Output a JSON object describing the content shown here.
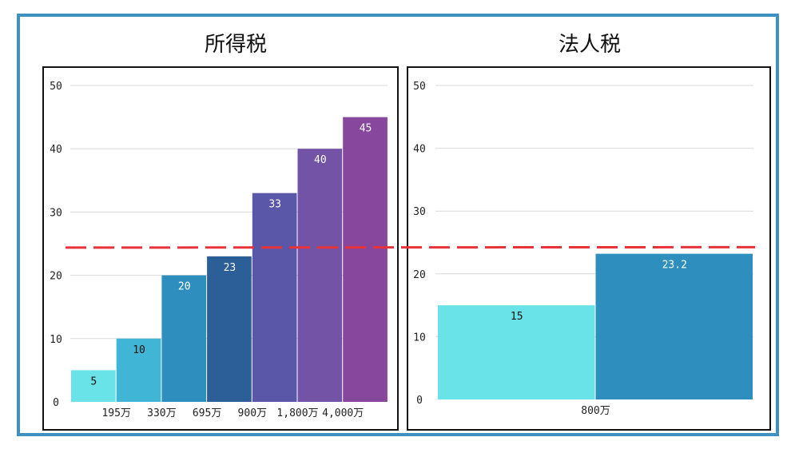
{
  "colors": {
    "frame": "#3f91c2",
    "reference_line": "#e8323a",
    "gridline": "#d9d9d9"
  },
  "reference_line_value": 24,
  "chart_data": [
    {
      "type": "bar",
      "title": "所得税",
      "ylim": [
        0,
        50
      ],
      "yticks": [
        0,
        10,
        20,
        30,
        40,
        50
      ],
      "grid": true,
      "boundary_labels": [
        "195万",
        "330万",
        "695万",
        "900万",
        "1,800万",
        "4,000万"
      ],
      "values": [
        5,
        10,
        20,
        23,
        33,
        40,
        45
      ],
      "data_labels": [
        "5",
        "10",
        "20",
        "23",
        "33",
        "40",
        "45"
      ],
      "colors": [
        "#6ae3e8",
        "#41b5d6",
        "#2e8fbe",
        "#2c5e97",
        "#5b57a8",
        "#7353a6",
        "#86479c"
      ],
      "label_colors": [
        "#111111",
        "#111111",
        "#ffffff",
        "#ffffff",
        "#ffffff",
        "#ffffff",
        "#ffffff"
      ]
    },
    {
      "type": "bar",
      "title": "法人税",
      "ylim": [
        0,
        50
      ],
      "yticks": [
        0,
        10,
        20,
        30,
        40,
        50
      ],
      "grid": true,
      "boundary_labels": [
        "800万"
      ],
      "values": [
        15,
        23.2
      ],
      "data_labels": [
        "15",
        "23.2"
      ],
      "colors": [
        "#6ae3e8",
        "#2e8fbe"
      ],
      "label_colors": [
        "#111111",
        "#ffffff"
      ]
    }
  ]
}
